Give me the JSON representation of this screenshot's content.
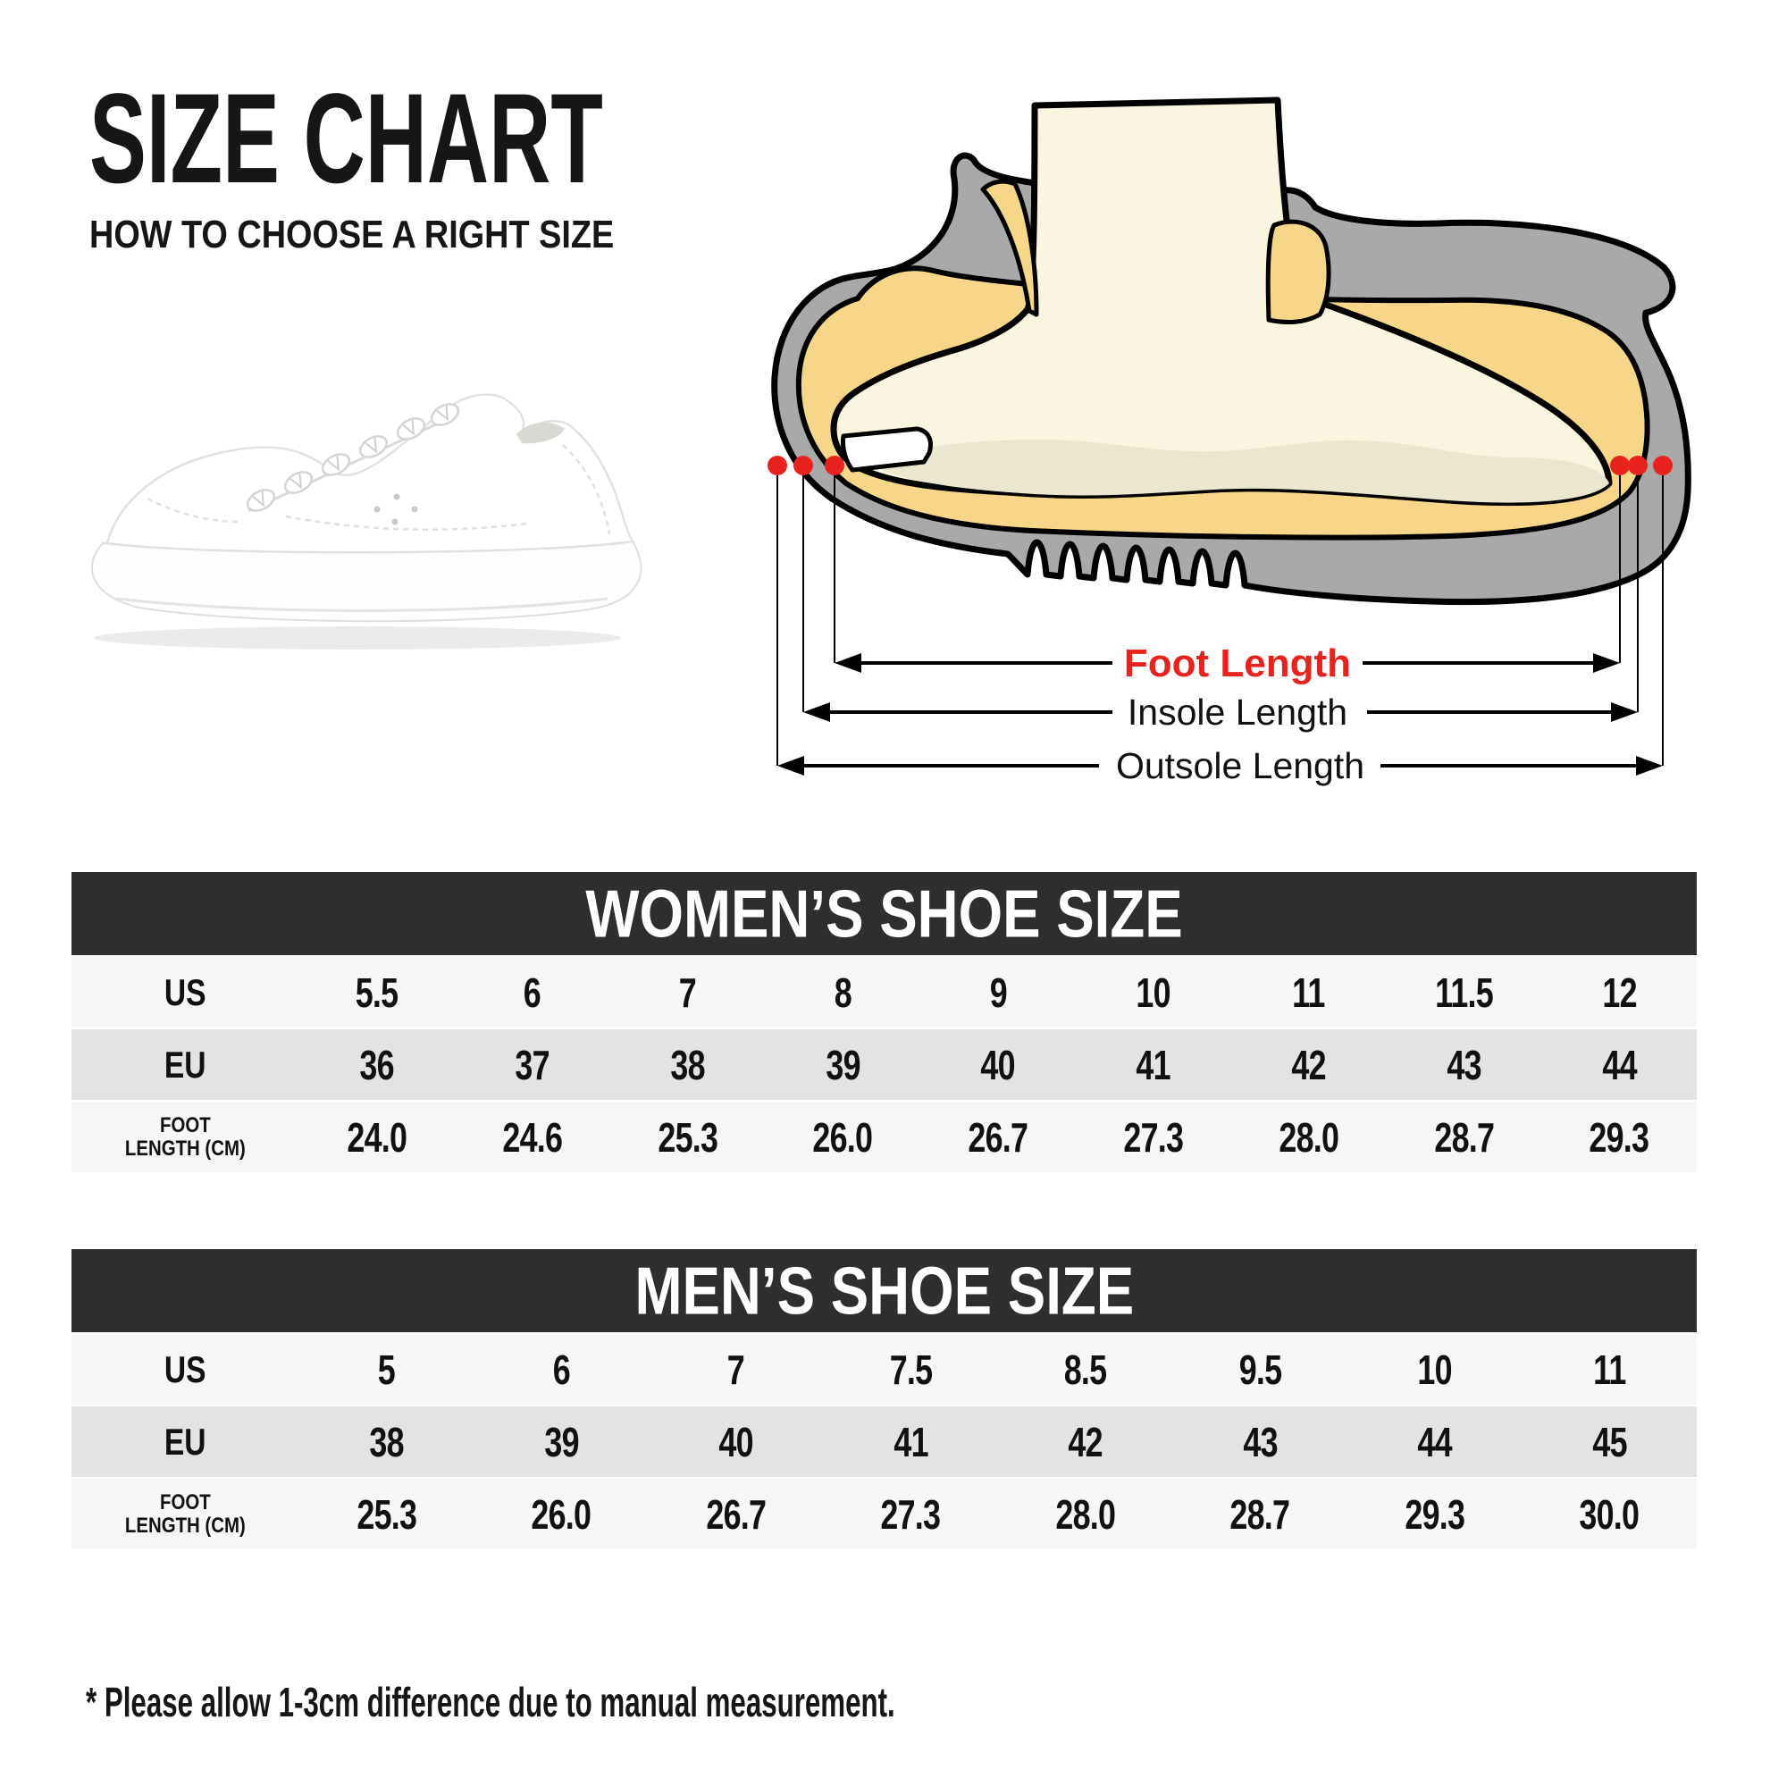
{
  "header": {
    "title": "SIZE CHART",
    "subtitle": "HOW TO CHOOSE A RIGHT SIZE"
  },
  "diagram": {
    "foot_length_label": "Foot Length",
    "insole_length_label": "Insole Length",
    "outsole_length_label": "Outsole Length",
    "colors": {
      "sole_gray": "#a9a9a9",
      "insole_yellow": "#f6d78a",
      "skin_cream": "#f9f5e0",
      "skin_shade": "#eae6d0",
      "marker_red": "#e8231d",
      "outline_black": "#000000"
    }
  },
  "chart_data": [
    {
      "type": "table",
      "title": "WOMEN’S SHOE SIZE",
      "rows": [
        {
          "label": "US",
          "values": [
            "5.5",
            "6",
            "7",
            "8",
            "9",
            "10",
            "11",
            "11.5",
            "12"
          ]
        },
        {
          "label": "EU",
          "values": [
            "36",
            "37",
            "38",
            "39",
            "40",
            "41",
            "42",
            "43",
            "44"
          ]
        },
        {
          "label": "FOOT LENGTH (CM)",
          "label_lines": [
            "FOOT",
            "LENGTH (CM)"
          ],
          "values": [
            "24.0",
            "24.6",
            "25.3",
            "26.0",
            "26.7",
            "27.3",
            "28.0",
            "28.7",
            "29.3"
          ]
        }
      ]
    },
    {
      "type": "table",
      "title": "MEN’S SHOE SIZE",
      "rows": [
        {
          "label": "US",
          "values": [
            "5",
            "6",
            "7",
            "7.5",
            "8.5",
            "9.5",
            "10",
            "11"
          ]
        },
        {
          "label": "EU",
          "values": [
            "38",
            "39",
            "40",
            "41",
            "42",
            "43",
            "44",
            "45"
          ]
        },
        {
          "label": "FOOT LENGTH (CM)",
          "label_lines": [
            "FOOT",
            "LENGTH (CM)"
          ],
          "values": [
            "25.3",
            "26.0",
            "26.7",
            "27.3",
            "28.0",
            "28.7",
            "29.3",
            "30.0"
          ]
        }
      ]
    }
  ],
  "table_style": {
    "header_bg": "#2e2e2e",
    "header_text": "#ffffff",
    "row_light": "#f6f6f6",
    "row_dark": "#e3e3e3"
  },
  "footnote": "* Please allow 1-3cm difference due to manual measurement."
}
